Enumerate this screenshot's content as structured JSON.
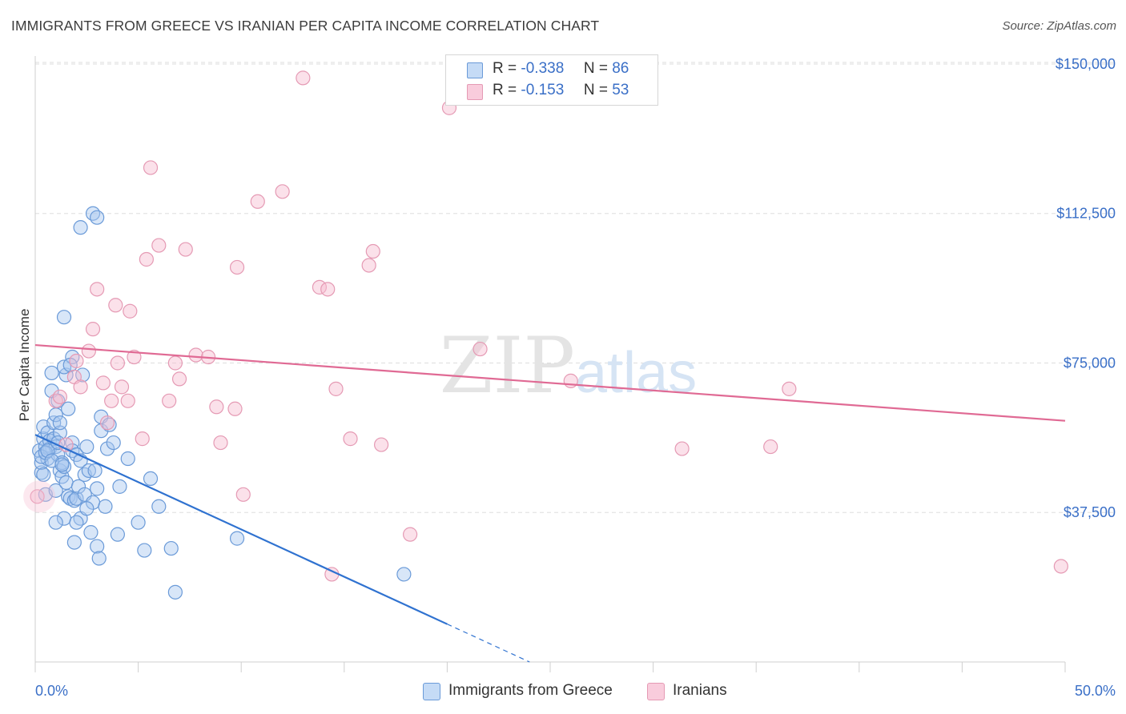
{
  "title": "IMMIGRANTS FROM GREECE VS IRANIAN PER CAPITA INCOME CORRELATION CHART",
  "source": "Source: ZipAtlas.com",
  "watermark": {
    "zip": "ZIP",
    "atlas": "atlas"
  },
  "legend": {
    "greece": {
      "r_label": "R =",
      "r_value": "-0.338",
      "n_label": "N =",
      "n_value": "86"
    },
    "iran": {
      "r_label": "R =",
      "r_value": "-0.153",
      "n_label": "N =",
      "n_value": "53"
    }
  },
  "colors": {
    "greece_fill": "#a8c8f0",
    "greece_stroke": "#6a9ad8",
    "greece_line": "#2f72d0",
    "iran_fill": "#f6bcd0",
    "iran_stroke": "#e59ab4",
    "iran_line": "#e06a94",
    "grid": "#dddddd",
    "tick_text": "#3a6fc7"
  },
  "chart_data": {
    "type": "scatter",
    "title": "IMMIGRANTS FROM GREECE VS IRANIAN PER CAPITA INCOME CORRELATION CHART",
    "xlabel": "",
    "ylabel": "Per Capita Income",
    "xlim": [
      0,
      50
    ],
    "ylim": [
      0,
      152000
    ],
    "x_tick_labels": [
      "0.0%",
      "50.0%"
    ],
    "y_ticks": [
      37500,
      75000,
      112500,
      150000
    ],
    "y_tick_labels": [
      "$37,500",
      "$75,000",
      "$112,500",
      "$150,000"
    ],
    "series": [
      {
        "name": "Immigrants from Greece",
        "r": -0.338,
        "n": 86,
        "trend": {
          "x0": 0,
          "y0": 57000,
          "x1": 20,
          "y1": 9500,
          "dash_to_x": 24,
          "dash_to_y": 0
        },
        "points": [
          [
            0.2,
            53000
          ],
          [
            0.3,
            47500
          ],
          [
            0.3,
            50000
          ],
          [
            0.4,
            56000
          ],
          [
            0.4,
            59000
          ],
          [
            0.5,
            54000
          ],
          [
            0.5,
            42000
          ],
          [
            0.6,
            51000
          ],
          [
            0.6,
            57500
          ],
          [
            0.7,
            53500
          ],
          [
            0.7,
            55500
          ],
          [
            0.8,
            68000
          ],
          [
            0.8,
            72500
          ],
          [
            0.9,
            60000
          ],
          [
            0.9,
            56000
          ],
          [
            1.0,
            54000
          ],
          [
            1.0,
            62000
          ],
          [
            1.0,
            43000
          ],
          [
            1.1,
            65500
          ],
          [
            1.1,
            52000
          ],
          [
            1.2,
            57500
          ],
          [
            1.2,
            48000
          ],
          [
            1.2,
            60000
          ],
          [
            1.3,
            50000
          ],
          [
            1.3,
            46500
          ],
          [
            1.4,
            49000
          ],
          [
            1.4,
            36000
          ],
          [
            1.5,
            45000
          ],
          [
            1.5,
            72000
          ],
          [
            1.6,
            63500
          ],
          [
            1.6,
            41500
          ],
          [
            1.7,
            41000
          ],
          [
            1.8,
            55000
          ],
          [
            1.8,
            53000
          ],
          [
            1.9,
            40500
          ],
          [
            2.0,
            52000
          ],
          [
            2.0,
            41000
          ],
          [
            2.1,
            44000
          ],
          [
            2.2,
            50500
          ],
          [
            2.2,
            36000
          ],
          [
            2.3,
            72000
          ],
          [
            2.4,
            47000
          ],
          [
            2.4,
            42000
          ],
          [
            2.5,
            54000
          ],
          [
            2.6,
            48000
          ],
          [
            2.8,
            40000
          ],
          [
            2.9,
            48000
          ],
          [
            3.0,
            43500
          ],
          [
            3.0,
            29000
          ],
          [
            3.1,
            26000
          ],
          [
            3.2,
            58000
          ],
          [
            3.2,
            61500
          ],
          [
            3.4,
            39000
          ],
          [
            3.5,
            53500
          ],
          [
            3.6,
            59500
          ],
          [
            3.8,
            55000
          ],
          [
            4.0,
            32000
          ],
          [
            4.1,
            44000
          ],
          [
            4.5,
            51000
          ],
          [
            5.0,
            35000
          ],
          [
            5.3,
            28000
          ],
          [
            5.6,
            46000
          ],
          [
            6.0,
            39000
          ],
          [
            6.6,
            28500
          ],
          [
            6.8,
            17500
          ],
          [
            0.3,
            51500
          ],
          [
            0.5,
            52500
          ],
          [
            0.6,
            53000
          ],
          [
            1.4,
            74000
          ],
          [
            1.8,
            76500
          ],
          [
            2.2,
            109000
          ],
          [
            2.8,
            112500
          ],
          [
            3.0,
            111500
          ],
          [
            1.4,
            86500
          ],
          [
            1.0,
            35000
          ],
          [
            2.0,
            35000
          ],
          [
            1.7,
            74500
          ],
          [
            2.5,
            38500
          ],
          [
            0.4,
            47000
          ],
          [
            0.8,
            50500
          ],
          [
            1.3,
            49500
          ],
          [
            1.1,
            55000
          ],
          [
            9.8,
            31000
          ],
          [
            17.9,
            22000
          ],
          [
            2.7,
            32500
          ],
          [
            1.9,
            30000
          ]
        ]
      },
      {
        "name": "Iranians",
        "r": -0.153,
        "n": 53,
        "trend": {
          "x0": 0,
          "y0": 79500,
          "x1": 50,
          "y1": 60500
        },
        "points": [
          [
            0.1,
            41500
          ],
          [
            1.0,
            65500
          ],
          [
            1.2,
            66500
          ],
          [
            1.5,
            54500
          ],
          [
            1.9,
            71500
          ],
          [
            2.0,
            75500
          ],
          [
            2.2,
            69000
          ],
          [
            2.6,
            78000
          ],
          [
            2.8,
            83500
          ],
          [
            3.0,
            93500
          ],
          [
            3.3,
            70000
          ],
          [
            3.5,
            60000
          ],
          [
            3.7,
            65500
          ],
          [
            3.9,
            89500
          ],
          [
            4.0,
            75000
          ],
          [
            4.2,
            69000
          ],
          [
            4.5,
            65500
          ],
          [
            4.6,
            88000
          ],
          [
            4.8,
            76500
          ],
          [
            5.2,
            56000
          ],
          [
            5.4,
            101000
          ],
          [
            5.6,
            124000
          ],
          [
            6.0,
            104500
          ],
          [
            6.5,
            65500
          ],
          [
            6.8,
            75000
          ],
          [
            7.0,
            71000
          ],
          [
            7.3,
            103500
          ],
          [
            7.8,
            77000
          ],
          [
            8.4,
            76500
          ],
          [
            8.8,
            64000
          ],
          [
            9.0,
            55000
          ],
          [
            9.7,
            63500
          ],
          [
            9.8,
            99000
          ],
          [
            10.1,
            42000
          ],
          [
            10.8,
            115500
          ],
          [
            12.0,
            118000
          ],
          [
            13.0,
            146500
          ],
          [
            13.8,
            94000
          ],
          [
            14.2,
            93500
          ],
          [
            14.4,
            22000
          ],
          [
            14.6,
            68500
          ],
          [
            15.3,
            56000
          ],
          [
            16.2,
            99500
          ],
          [
            16.4,
            103000
          ],
          [
            16.8,
            54500
          ],
          [
            18.2,
            32000
          ],
          [
            20.1,
            139000
          ],
          [
            21.6,
            78500
          ],
          [
            26.0,
            70500
          ],
          [
            31.4,
            53500
          ],
          [
            35.7,
            54000
          ],
          [
            36.6,
            68500
          ],
          [
            49.8,
            24000
          ]
        ]
      }
    ]
  },
  "bottom_legend": {
    "greece": "Immigrants from Greece",
    "iran": "Iranians"
  }
}
